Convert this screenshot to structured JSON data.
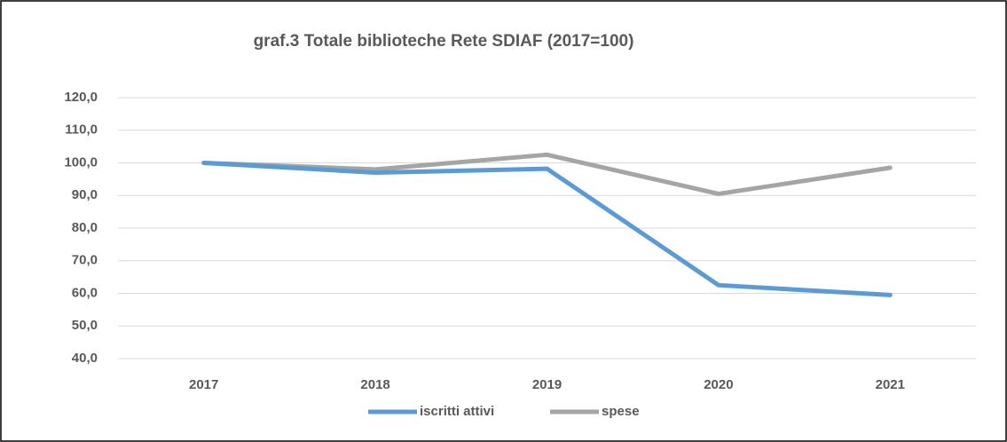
{
  "chart_data": {
    "type": "line",
    "title": "graf.3  Totale biblioteche Rete SDIAF (2017=100)",
    "categories": [
      "2017",
      "2018",
      "2019",
      "2020",
      "2021"
    ],
    "series": [
      {
        "name": "iscritti attivi",
        "color": "#5b9bd5",
        "values": [
          100,
          97,
          98.2,
          62.5,
          59.5
        ]
      },
      {
        "name": "spese",
        "color": "#a5a5a5",
        "values": [
          100,
          98,
          102.5,
          90.5,
          98.5
        ]
      }
    ],
    "ylim": [
      40,
      120
    ],
    "yticks": [
      {
        "value": 40,
        "label": "40,0"
      },
      {
        "value": 50,
        "label": "50,0"
      },
      {
        "value": 60,
        "label": "60,0"
      },
      {
        "value": 70,
        "label": "70,0"
      },
      {
        "value": 80,
        "label": "80,0"
      },
      {
        "value": 90,
        "label": "90,0"
      },
      {
        "value": 100,
        "label": "100,0"
      },
      {
        "value": 110,
        "label": "110,0"
      },
      {
        "value": 120,
        "label": "120,0"
      }
    ],
    "grid": true,
    "legend": "bottom"
  }
}
